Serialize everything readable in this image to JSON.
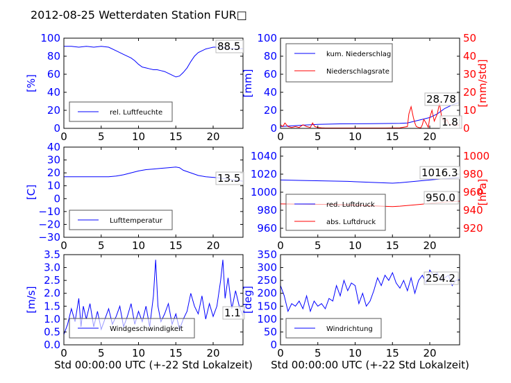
{
  "figure": {
    "title": "2012-08-25 Wetterdaten Station FUR□"
  },
  "colors": {
    "blue": "#0000ff",
    "red": "#ff0000",
    "black": "#000000",
    "legend_border": "#555555"
  },
  "chart_data": [
    {
      "type": "line",
      "panel": "humidity",
      "ylabel": "[%]",
      "xlim": [
        0,
        24
      ],
      "ylim": [
        0,
        100
      ],
      "xticks": [
        "0",
        "5",
        "10",
        "15",
        "20"
      ],
      "yticks": [
        "0",
        "20",
        "40",
        "60",
        "80",
        "100"
      ],
      "legend": [
        "rel. Luftfeuchte"
      ],
      "annotation": "88.5",
      "series": [
        {
          "name": "rel. Luftfeuchte",
          "color": "blue",
          "x": [
            0,
            1,
            2,
            3,
            4,
            5,
            6,
            7,
            8,
            9,
            9.5,
            10,
            10.5,
            11,
            11.5,
            12,
            12.5,
            13,
            13.5,
            14,
            14.5,
            15,
            15.5,
            16,
            16.5,
            17,
            17.5,
            18,
            18.5,
            19,
            19.5,
            20,
            21,
            22,
            23,
            24
          ],
          "y": [
            91,
            91,
            90,
            91,
            90,
            91,
            90,
            86,
            82,
            78,
            75,
            71,
            68,
            67,
            66,
            65,
            65,
            64,
            63,
            61,
            59,
            57,
            58,
            62,
            67,
            74,
            80,
            84,
            86,
            88,
            89,
            90,
            90,
            89,
            88,
            88.5
          ]
        }
      ]
    },
    {
      "type": "line",
      "panel": "precipitation",
      "ylabel": "[mm]",
      "y2label": "[mm/std]",
      "xlim": [
        0,
        24
      ],
      "ylim": [
        0,
        100
      ],
      "y2lim": [
        0,
        50
      ],
      "xticks": [
        "0",
        "5",
        "10",
        "15",
        "20"
      ],
      "yticks": [
        "0",
        "20",
        "40",
        "60",
        "80",
        "100"
      ],
      "y2ticks": [
        "0",
        "10",
        "20",
        "30",
        "40",
        "50"
      ],
      "legend": [
        "kum. Niederschlag",
        "Niederschlagsrate"
      ],
      "annotations": [
        "28.78",
        "1.8"
      ],
      "series": [
        {
          "name": "kum. Niederschlag",
          "color": "blue",
          "axis": "left",
          "x": [
            0,
            1,
            3,
            5,
            8,
            12,
            16,
            17,
            18,
            19,
            20,
            21,
            22,
            23,
            24
          ],
          "y": [
            2,
            2.5,
            3.5,
            4.5,
            5,
            5.2,
            5.5,
            6,
            8,
            10,
            12,
            16,
            22,
            26,
            28.78
          ]
        },
        {
          "name": "Niederschlagsrate",
          "color": "red",
          "axis": "right",
          "x": [
            0,
            0.3,
            0.6,
            1,
            1.5,
            2,
            2.5,
            3,
            3.5,
            4,
            4.3,
            4.6,
            5,
            5.5,
            6,
            8,
            10,
            12,
            14,
            16,
            17,
            17.2,
            17.5,
            17.8,
            18,
            18.2,
            18.5,
            18.8,
            19,
            19.2,
            19.5,
            19.8,
            20,
            20.3,
            20.6,
            21,
            21.3,
            21.6,
            22,
            22.3,
            22.6,
            23,
            23.5,
            24
          ],
          "y": [
            2,
            1,
            3,
            1,
            0.5,
            1,
            0.5,
            2,
            1,
            0.5,
            3,
            1,
            0.5,
            0.3,
            0.2,
            0.2,
            0.2,
            0.2,
            0.2,
            0.3,
            1,
            8,
            12,
            6,
            3,
            1,
            0.5,
            0.3,
            2,
            5,
            3,
            0.5,
            6,
            10,
            4,
            8,
            14,
            6,
            3,
            5,
            2,
            2,
            1.8,
            1.8
          ]
        }
      ]
    },
    {
      "type": "line",
      "panel": "temperature",
      "ylabel": "[C]",
      "xlim": [
        0,
        24
      ],
      "ylim": [
        -30,
        40
      ],
      "xticks": [
        "0",
        "5",
        "10",
        "15",
        "20"
      ],
      "yticks": [
        "−30",
        "−20",
        "−10",
        "0",
        "10",
        "20",
        "30",
        "40"
      ],
      "legend": [
        "Lufttemperatur"
      ],
      "annotation": "13.5",
      "series": [
        {
          "name": "Lufttemperatur",
          "color": "blue",
          "x": [
            0,
            2,
            4,
            6,
            7,
            8,
            9,
            10,
            11,
            12,
            13,
            14,
            15,
            15.5,
            16,
            17,
            18,
            19,
            20,
            21,
            22,
            23,
            24
          ],
          "y": [
            17,
            17,
            17,
            17,
            17.5,
            18.5,
            20,
            21.5,
            22.5,
            23,
            23.5,
            24,
            24.5,
            24,
            22,
            20,
            18,
            17,
            16.5,
            16,
            15,
            14.5,
            13.5
          ]
        }
      ]
    },
    {
      "type": "line",
      "panel": "pressure",
      "y2label": "[hPa]",
      "xlim": [
        0,
        24
      ],
      "ylim": [
        950,
        1050
      ],
      "y2lim": [
        910,
        1010
      ],
      "xticks": [
        "0",
        "5",
        "10",
        "15",
        "20"
      ],
      "yticks": [
        "960",
        "980",
        "1000",
        "1020",
        "1040"
      ],
      "y2ticks": [
        "920",
        "940",
        "960",
        "980",
        "1000"
      ],
      "legend": [
        "red. Luftdruck",
        "abs. Luftdruck"
      ],
      "annotations": [
        "1016.3",
        "950.0"
      ],
      "series": [
        {
          "name": "red. Luftdruck",
          "color": "blue",
          "axis": "left",
          "x": [
            0,
            3,
            6,
            9,
            12,
            15,
            16,
            18,
            20,
            22,
            24
          ],
          "y": [
            1013.5,
            1013,
            1012.5,
            1012,
            1011,
            1010,
            1010.5,
            1012,
            1013.5,
            1015,
            1016.3
          ]
        },
        {
          "name": "abs. Luftdruck",
          "color": "red",
          "axis": "right",
          "x": [
            0,
            3,
            6,
            9,
            12,
            15,
            16,
            18,
            20,
            22,
            24
          ],
          "y": [
            947,
            946.8,
            946.5,
            946,
            945,
            944,
            944.5,
            946,
            947.5,
            949,
            950
          ]
        }
      ]
    },
    {
      "type": "line",
      "panel": "wind-speed",
      "ylabel": "[m/s]",
      "xlabel": "Std 00:00:00 UTC (+-22 Std Lokalzeit)",
      "xlim": [
        0,
        24
      ],
      "ylim": [
        0,
        3.5
      ],
      "xticks": [
        "0",
        "5",
        "10",
        "15",
        "20"
      ],
      "yticks": [
        "0.0",
        "0.5",
        "1.0",
        "1.5",
        "2.0",
        "2.5",
        "3.0",
        "3.5"
      ],
      "legend": [
        "Windgeschwindigkeit"
      ],
      "annotation": "1.1",
      "series": [
        {
          "name": "Windgeschwindigkeit",
          "color": "blue",
          "x": [
            0,
            0.5,
            1,
            1.5,
            2,
            2.3,
            2.6,
            3,
            3.5,
            4,
            4.5,
            5,
            5.5,
            6,
            6.5,
            7,
            7.5,
            8,
            8.5,
            9,
            9.5,
            10,
            10.5,
            11,
            11.5,
            12,
            12.3,
            12.6,
            13,
            13.5,
            14,
            14.5,
            15,
            15.5,
            16,
            16.5,
            17,
            17.5,
            18,
            18.5,
            19,
            19.5,
            20,
            20.5,
            21,
            21.3,
            21.6,
            22,
            22.5,
            23,
            23.5,
            24
          ],
          "y": [
            0.4,
            0.8,
            1.4,
            0.9,
            1.8,
            0.7,
            1.5,
            1.0,
            1.6,
            0.7,
            1.3,
            0.6,
            1.0,
            1.4,
            0.8,
            1.1,
            1.5,
            0.7,
            1.1,
            1.6,
            0.8,
            1.3,
            0.9,
            1.5,
            0.7,
            1.9,
            3.3,
            1.5,
            0.9,
            1.2,
            1.6,
            0.8,
            1.2,
            0.6,
            1.0,
            1.3,
            2.0,
            1.5,
            1.2,
            1.9,
            1.0,
            1.6,
            1.1,
            1.5,
            2.5,
            3.3,
            1.8,
            2.6,
            1.4,
            2.1,
            1.5,
            1.1
          ]
        }
      ]
    },
    {
      "type": "line",
      "panel": "wind-direction",
      "ylabel": "[deg]",
      "xlabel": "Std 00:00:00 UTC (+-22 Std Lokalzeit)",
      "xlim": [
        0,
        24
      ],
      "ylim": [
        0,
        350
      ],
      "xticks": [
        "0",
        "5",
        "10",
        "15",
        "20"
      ],
      "yticks": [
        "0",
        "50",
        "100",
        "150",
        "200",
        "250",
        "300",
        "350"
      ],
      "legend": [
        "Windrichtung"
      ],
      "annotation": "254.2",
      "series": [
        {
          "name": "Windrichtung",
          "color": "blue",
          "x": [
            0,
            0.5,
            1,
            1.5,
            2,
            2.5,
            3,
            3.5,
            4,
            4.5,
            5,
            5.5,
            6,
            6.5,
            7,
            7.5,
            8,
            8.5,
            9,
            9.5,
            10,
            10.5,
            11,
            11.5,
            12,
            12.5,
            13,
            13.5,
            14,
            14.5,
            15,
            15.5,
            16,
            16.5,
            17,
            17.5,
            18,
            18.5,
            19,
            19.5,
            20,
            20.5,
            21,
            21.5,
            22,
            22.5,
            23,
            23.5,
            24
          ],
          "y": [
            230,
            190,
            130,
            160,
            150,
            170,
            140,
            190,
            130,
            170,
            150,
            160,
            140,
            180,
            170,
            230,
            190,
            250,
            210,
            240,
            230,
            160,
            200,
            150,
            170,
            210,
            260,
            230,
            270,
            250,
            280,
            240,
            220,
            250,
            210,
            260,
            200,
            250,
            270,
            240,
            290,
            270,
            280,
            250,
            260,
            270,
            230,
            250,
            254.2
          ]
        }
      ]
    }
  ]
}
